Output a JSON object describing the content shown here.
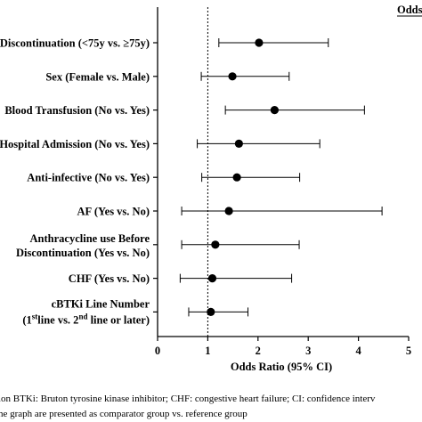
{
  "chart_data": {
    "type": "scatter",
    "header": "Odds",
    "xlabel": "Odds Ratio (95% CI)",
    "xlim": [
      0,
      5
    ],
    "xticks": [
      "0",
      "1",
      "2",
      "3",
      "4",
      "5"
    ],
    "reference_line": 1,
    "rows": [
      {
        "label_lines": [
          "Discontinuation (<75y vs. ≥75y)"
        ],
        "or": 2.02,
        "lower": 1.22,
        "upper": 3.4
      },
      {
        "label_lines": [
          "Sex (Female vs. Male)"
        ],
        "or": 1.49,
        "lower": 0.87,
        "upper": 2.62
      },
      {
        "label_lines": [
          "Blood Transfusion (No vs. Yes)"
        ],
        "or": 2.33,
        "lower": 1.35,
        "upper": 4.12
      },
      {
        "label_lines": [
          "Hospital Admission (No vs. Yes)"
        ],
        "or": 1.62,
        "lower": 0.79,
        "upper": 3.23
      },
      {
        "label_lines": [
          "Anti-infective (No vs. Yes)"
        ],
        "or": 1.58,
        "lower": 0.88,
        "upper": 2.83
      },
      {
        "label_lines": [
          "AF (Yes vs. No)"
        ],
        "or": 1.42,
        "lower": 0.48,
        "upper": 4.47
      },
      {
        "label_lines": [
          "Anthracycline use Before",
          "Discontinuation (Yes vs. No)"
        ],
        "or": 1.15,
        "lower": 0.48,
        "upper": 2.82
      },
      {
        "label_lines": [
          "CHF (Yes vs. No)"
        ],
        "or": 1.09,
        "lower": 0.45,
        "upper": 2.67
      },
      {
        "label_lines": [
          "cBTKi Line Number"
        ],
        "or": 1.06,
        "lower": 0.62,
        "upper": 1.8
      }
    ],
    "last_label_sub": {
      "pre": "(1",
      "sup1": "st",
      "mid": "line vs. 2",
      "sup2": "nd",
      "post": " line or later)"
    }
  },
  "footnote": {
    "line1": "ion BTKi: Bruton tyrosine kinase inhibitor; CHF: congestive heart failure; CI: confidence interv",
    "line2": "he graph are presented as comparator group vs. reference group"
  }
}
